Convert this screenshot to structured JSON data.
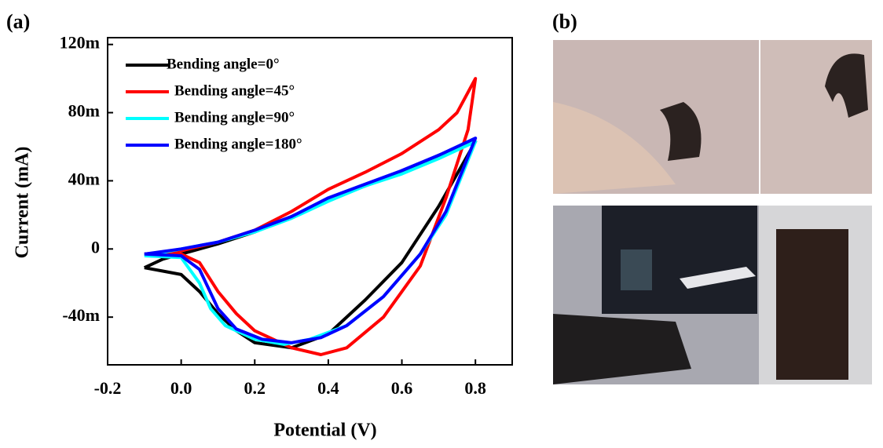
{
  "panel_a_label": "(a)",
  "panel_b_label": "(b)",
  "chart_data": {
    "type": "line",
    "xlabel": "Potential (V)",
    "ylabel": "Current (mA)",
    "xlim": [
      -0.2,
      0.9
    ],
    "ylim": [
      -0.068,
      0.124
    ],
    "xticks": [
      -0.2,
      {
        "value": 0,
        "label": "0.0"
      },
      0.2,
      0.4,
      0.6,
      0.8
    ],
    "yticks": [
      {
        "value": -0.04,
        "label": "-40m"
      },
      0,
      {
        "value": 0.04,
        "label": "40m"
      },
      {
        "value": 0.08,
        "label": "80m"
      },
      {
        "value": 0.12,
        "label": "120m"
      }
    ],
    "legend": "upper left",
    "series": [
      {
        "name": "Bending angle=0°",
        "color": "#000000",
        "x": [
          -0.1,
          -0.05,
          0.0,
          0.05,
          0.1,
          0.15,
          0.2,
          0.3,
          0.4,
          0.5,
          0.6,
          0.7,
          0.8,
          0.7,
          0.6,
          0.5,
          0.4,
          0.3,
          0.2,
          0.1,
          0.0,
          -0.05,
          -0.1
        ],
        "values": [
          -0.011,
          -0.013,
          -0.015,
          -0.025,
          -0.038,
          -0.048,
          -0.055,
          -0.058,
          -0.05,
          -0.03,
          -0.008,
          0.025,
          0.063,
          0.055,
          0.045,
          0.037,
          0.029,
          0.019,
          0.01,
          0.003,
          -0.003,
          -0.006,
          -0.011
        ]
      },
      {
        "name": "Bending angle=45°",
        "color": "#ff0000",
        "x": [
          -0.1,
          -0.05,
          0.0,
          0.05,
          0.1,
          0.15,
          0.2,
          0.3,
          0.38,
          0.45,
          0.55,
          0.65,
          0.72,
          0.78,
          0.8,
          0.75,
          0.7,
          0.6,
          0.5,
          0.4,
          0.3,
          0.2,
          0.1,
          0.0,
          -0.1
        ],
        "values": [
          -0.003,
          -0.002,
          -0.003,
          -0.008,
          -0.025,
          -0.038,
          -0.048,
          -0.058,
          -0.062,
          -0.058,
          -0.04,
          -0.01,
          0.03,
          0.07,
          0.1,
          0.08,
          0.07,
          0.056,
          0.045,
          0.035,
          0.022,
          0.011,
          0.004,
          -0.001,
          -0.003
        ]
      },
      {
        "name": "Bending angle=90°",
        "color": "#00ffff",
        "x": [
          -0.1,
          0.0,
          0.05,
          0.08,
          0.12,
          0.2,
          0.28,
          0.35,
          0.45,
          0.55,
          0.65,
          0.72,
          0.8,
          0.7,
          0.6,
          0.5,
          0.4,
          0.3,
          0.2,
          0.1,
          0.0,
          -0.1
        ],
        "values": [
          -0.004,
          -0.005,
          -0.02,
          -0.035,
          -0.045,
          -0.053,
          -0.056,
          -0.053,
          -0.045,
          -0.028,
          -0.003,
          0.02,
          0.063,
          0.053,
          0.044,
          0.037,
          0.028,
          0.018,
          0.01,
          0.004,
          0.0,
          -0.004
        ]
      },
      {
        "name": "Bending angle=180°",
        "color": "#0000ff",
        "x": [
          -0.1,
          0.0,
          0.05,
          0.1,
          0.15,
          0.22,
          0.3,
          0.38,
          0.45,
          0.55,
          0.65,
          0.72,
          0.8,
          0.7,
          0.6,
          0.5,
          0.4,
          0.3,
          0.2,
          0.1,
          0.0,
          -0.1
        ],
        "values": [
          -0.003,
          -0.004,
          -0.012,
          -0.035,
          -0.047,
          -0.053,
          -0.055,
          -0.052,
          -0.045,
          -0.028,
          -0.003,
          0.022,
          0.065,
          0.055,
          0.046,
          0.038,
          0.03,
          0.019,
          0.011,
          0.004,
          0.0,
          -0.003
        ]
      }
    ]
  }
}
